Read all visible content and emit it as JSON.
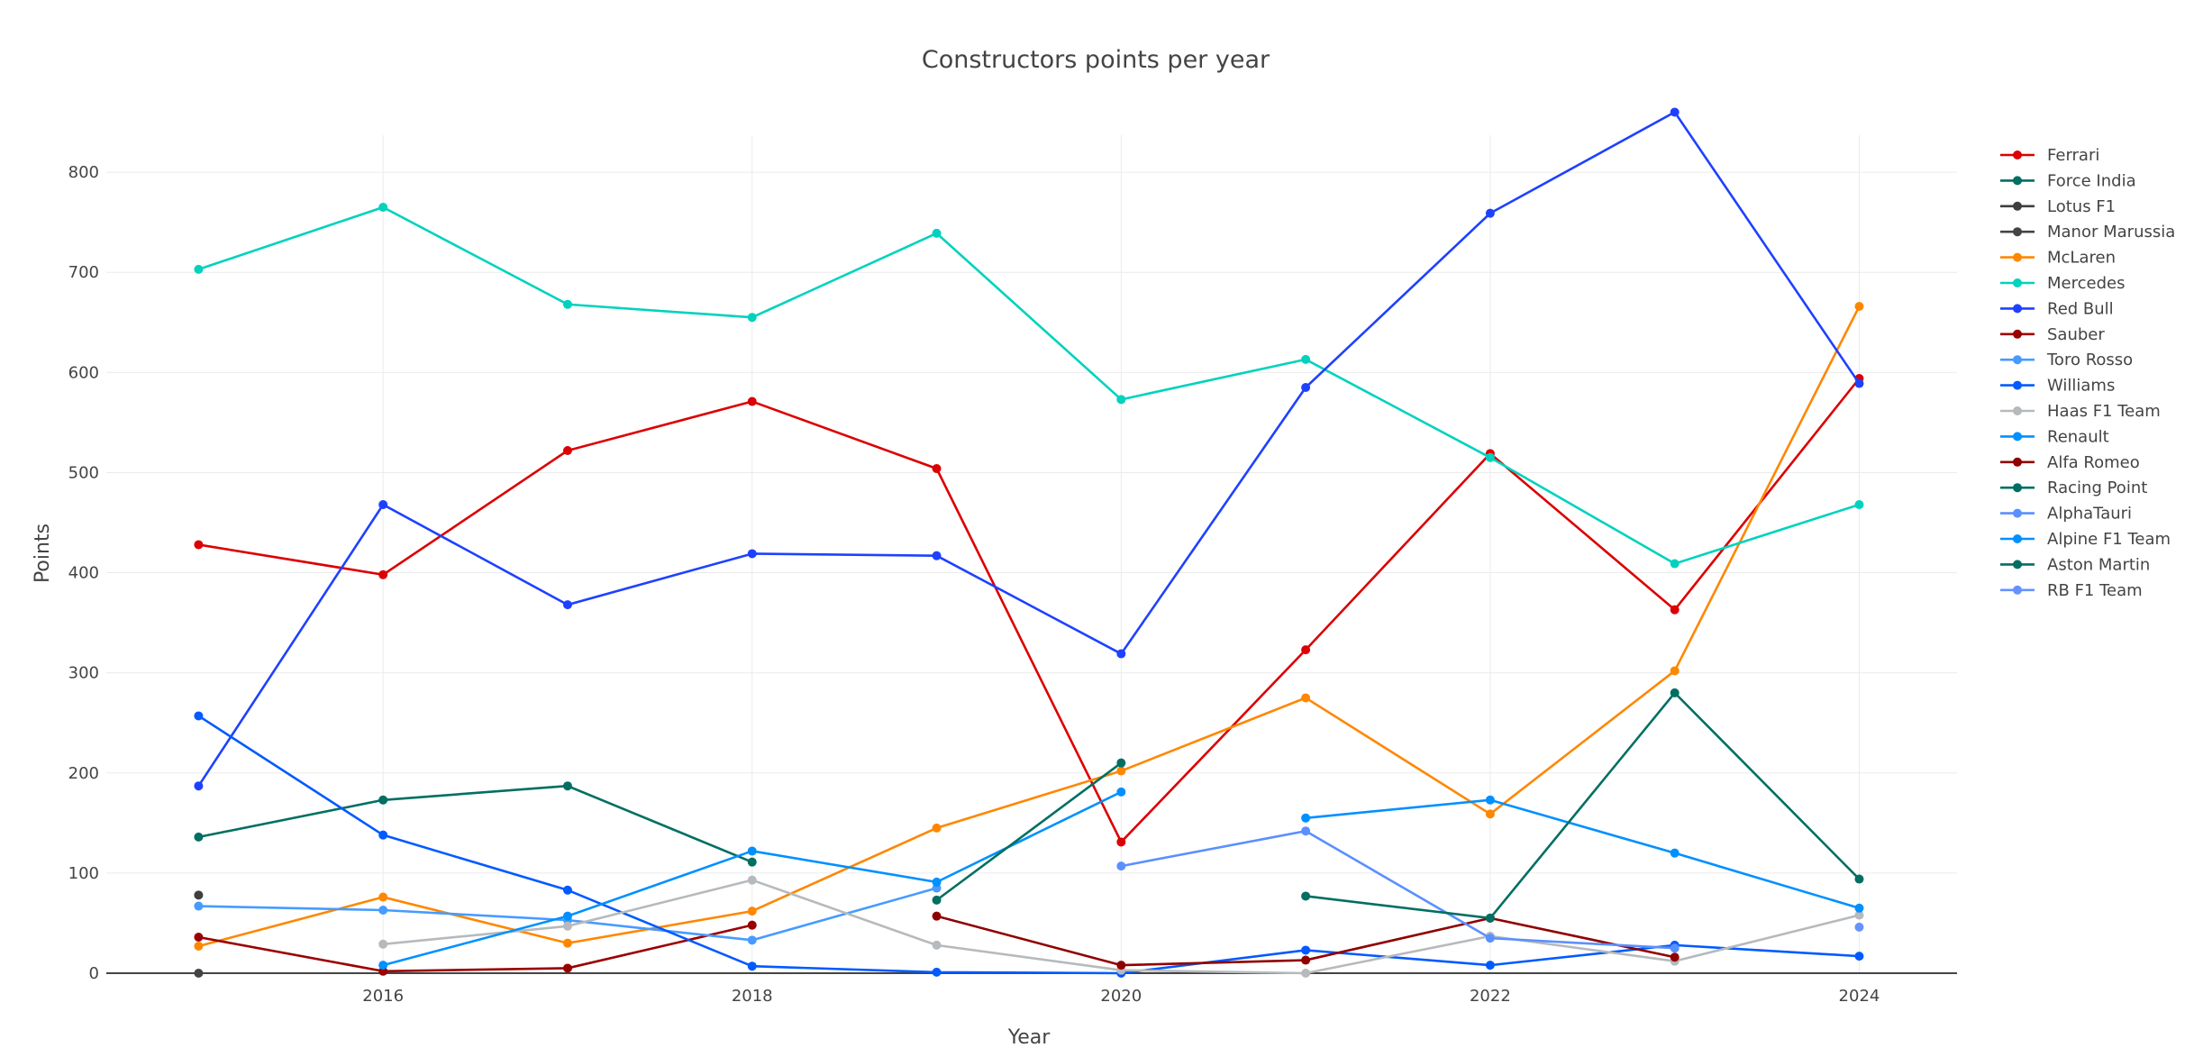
{
  "chart_data": {
    "type": "line",
    "title": "Constructors points per year",
    "xlabel": "Year",
    "ylabel": "Points",
    "xlim": [
      2014.5,
      2024.53
    ],
    "ylim": [
      0,
      837
    ],
    "x_ticks": [
      2016,
      2018,
      2020,
      2022,
      2024
    ],
    "y_ticks": [
      0,
      100,
      200,
      300,
      400,
      500,
      600,
      700,
      800
    ],
    "grid": true,
    "legend_position": "right",
    "series": [
      {
        "name": "Ferrari",
        "color": "#dc0000",
        "points": [
          [
            2015,
            428
          ],
          [
            2016,
            398
          ],
          [
            2017,
            522
          ],
          [
            2018,
            571
          ],
          [
            2019,
            504
          ],
          [
            2020,
            131
          ],
          [
            2021,
            323
          ],
          [
            2022,
            519
          ],
          [
            2023,
            363
          ],
          [
            2024,
            594
          ]
        ]
      },
      {
        "name": "Force India",
        "color": "#006f62",
        "points": [
          [
            2015,
            136
          ],
          [
            2016,
            173
          ],
          [
            2017,
            187
          ],
          [
            2018,
            111
          ]
        ]
      },
      {
        "name": "Lotus F1",
        "color": "#3f3f3f",
        "points": [
          [
            2015,
            78
          ]
        ]
      },
      {
        "name": "Manor Marussia",
        "color": "#444444",
        "points": [
          [
            2015,
            0
          ]
        ]
      },
      {
        "name": "McLaren",
        "color": "#ff8700",
        "points": [
          [
            2015,
            27
          ],
          [
            2016,
            76
          ],
          [
            2017,
            30
          ],
          [
            2018,
            62
          ],
          [
            2019,
            145
          ],
          [
            2020,
            202
          ],
          [
            2021,
            275
          ],
          [
            2022,
            159
          ],
          [
            2023,
            302
          ],
          [
            2024,
            666
          ]
        ]
      },
      {
        "name": "Mercedes",
        "color": "#00d2be",
        "points": [
          [
            2015,
            703
          ],
          [
            2016,
            765
          ],
          [
            2017,
            668
          ],
          [
            2018,
            655
          ],
          [
            2019,
            739
          ],
          [
            2020,
            573
          ],
          [
            2021,
            613
          ],
          [
            2022,
            515
          ],
          [
            2023,
            409
          ],
          [
            2024,
            468
          ]
        ]
      },
      {
        "name": "Red Bull",
        "color": "#1e41ff",
        "points": [
          [
            2015,
            187
          ],
          [
            2016,
            468
          ],
          [
            2017,
            368
          ],
          [
            2018,
            419
          ],
          [
            2019,
            417
          ],
          [
            2020,
            319
          ],
          [
            2021,
            585
          ],
          [
            2022,
            759
          ],
          [
            2023,
            860
          ],
          [
            2024,
            589
          ]
        ]
      },
      {
        "name": "Sauber",
        "color": "#9b0000",
        "points": [
          [
            2015,
            36
          ],
          [
            2016,
            2
          ],
          [
            2017,
            5
          ],
          [
            2018,
            48
          ]
        ]
      },
      {
        "name": "Toro Rosso",
        "color": "#469bff",
        "points": [
          [
            2015,
            67
          ],
          [
            2016,
            63
          ],
          [
            2017,
            53
          ],
          [
            2018,
            33
          ],
          [
            2019,
            85
          ]
        ]
      },
      {
        "name": "Williams",
        "color": "#005aff",
        "points": [
          [
            2015,
            257
          ],
          [
            2016,
            138
          ],
          [
            2017,
            83
          ],
          [
            2018,
            7
          ],
          [
            2019,
            1
          ],
          [
            2020,
            0
          ],
          [
            2021,
            23
          ],
          [
            2022,
            8
          ],
          [
            2023,
            28
          ],
          [
            2024,
            17
          ]
        ]
      },
      {
        "name": "Haas F1 Team",
        "color": "#b6babd",
        "points": [
          [
            2016,
            29
          ],
          [
            2017,
            47
          ],
          [
            2018,
            93
          ],
          [
            2019,
            28
          ],
          [
            2020,
            3
          ],
          [
            2021,
            0
          ],
          [
            2022,
            37
          ],
          [
            2023,
            12
          ],
          [
            2024,
            58
          ]
        ]
      },
      {
        "name": "Renault",
        "color": "#0090ff",
        "points": [
          [
            2016,
            8
          ],
          [
            2017,
            57
          ],
          [
            2018,
            122
          ],
          [
            2019,
            91
          ],
          [
            2020,
            181
          ]
        ]
      },
      {
        "name": "Alfa Romeo",
        "color": "#900000",
        "points": [
          [
            2019,
            57
          ],
          [
            2020,
            8
          ],
          [
            2021,
            13
          ],
          [
            2022,
            55
          ],
          [
            2023,
            16
          ]
        ]
      },
      {
        "name": "Racing Point",
        "color": "#006f62",
        "points": [
          [
            2019,
            73
          ],
          [
            2020,
            210
          ]
        ]
      },
      {
        "name": "AlphaTauri",
        "color": "#5a8fff",
        "points": [
          [
            2020,
            107
          ],
          [
            2021,
            142
          ],
          [
            2022,
            35
          ],
          [
            2023,
            25
          ]
        ]
      },
      {
        "name": "Alpine F1 Team",
        "color": "#0090ff",
        "points": [
          [
            2021,
            155
          ],
          [
            2022,
            173
          ],
          [
            2023,
            120
          ],
          [
            2024,
            65
          ]
        ]
      },
      {
        "name": "Aston Martin",
        "color": "#006f62",
        "points": [
          [
            2021,
            77
          ],
          [
            2022,
            55
          ],
          [
            2023,
            280
          ],
          [
            2024,
            94
          ]
        ]
      },
      {
        "name": "RB F1 Team",
        "color": "#6692ff",
        "points": [
          [
            2024,
            46
          ]
        ]
      }
    ]
  }
}
